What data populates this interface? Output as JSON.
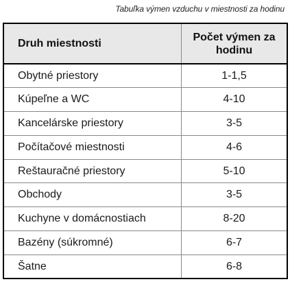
{
  "caption": "Tabuľka výmen vzduchu v miestnosti za hodinu",
  "table": {
    "headers": {
      "room": "Druh miestnosti",
      "rate": "Počet výmen za hodinu"
    },
    "rows": [
      {
        "room": "Obytné priestory",
        "rate": "1-1,5"
      },
      {
        "room": "Kúpeľne a WC",
        "rate": "4-10"
      },
      {
        "room": "Kancelárske priestory",
        "rate": "3-5"
      },
      {
        "room": "Počítačové miestnosti",
        "rate": "4-6"
      },
      {
        "room": "Reštauračné priestory",
        "rate": "5-10"
      },
      {
        "room": "Obchody",
        "rate": "3-5"
      },
      {
        "room": "Kuchyne v domácnostiach",
        "rate": "8-20"
      },
      {
        "room": "Bazény (súkromné)",
        "rate": "6-7"
      },
      {
        "room": "Šatne",
        "rate": "6-8"
      }
    ]
  }
}
